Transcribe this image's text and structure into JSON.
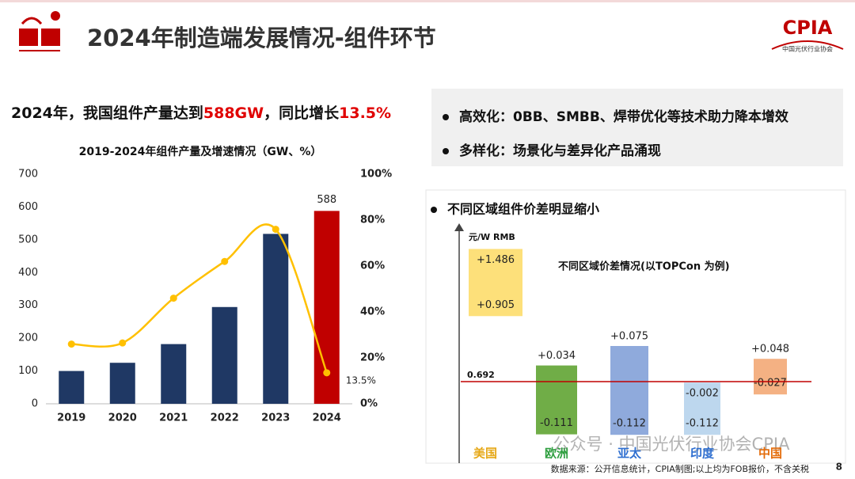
{
  "header": {
    "title": "2024年制造端发展情况-组件环节",
    "logo": "CPIA",
    "logo_subtitle": "中国光伏行业协会"
  },
  "headline": {
    "parts": [
      "2024年，我国组件产量达到",
      "588GW",
      "，同比增长",
      "13.5%"
    ]
  },
  "bullets": [
    "高效化：0BB、SMBB、焊带优化等技术助力降本增效",
    "多样化：场景化与差异化产品涌现"
  ],
  "section_bullet": "不同区域组件价差明显缩小",
  "chart_data": [
    {
      "type": "bar-line",
      "title": "2019-2024年组件产量及增速情况（GW、%）",
      "categories": [
        "2019",
        "2020",
        "2021",
        "2022",
        "2023",
        "2024"
      ],
      "series": [
        {
          "type": "bar",
          "colors": [
            "#1f3864",
            "#1f3864",
            "#1f3864",
            "#1f3864",
            "#1f3864",
            "#c00000"
          ],
          "values": [
            100,
            125,
            182,
            295,
            518,
            588
          ],
          "value_labels": [
            null,
            null,
            null,
            null,
            null,
            "588"
          ]
        },
        {
          "type": "line",
          "axis": "y2",
          "color": "#ffc000",
          "values": [
            26,
            26.5,
            46,
            62,
            76,
            13.5
          ],
          "value_labels": [
            null,
            null,
            null,
            null,
            null,
            "13.5%"
          ]
        }
      ],
      "ylim": [
        0,
        700
      ],
      "yticks": [
        0,
        100,
        200,
        300,
        400,
        500,
        600,
        700
      ],
      "y2lim": [
        0,
        100
      ],
      "y2ticks": [
        {
          "value": 0,
          "label": "0%"
        },
        {
          "value": 20,
          "label": "20%"
        },
        {
          "value": 40,
          "label": "40%"
        },
        {
          "value": 60,
          "label": "60%"
        },
        {
          "value": 80,
          "label": "80%"
        },
        {
          "value": 100,
          "label": "100%"
        }
      ]
    },
    {
      "type": "range-bar",
      "title": "不同区域价差情况(以TOPCon 为例)",
      "y_label": "元/W  RMB",
      "categories": [
        "美国",
        "欧洲",
        "亚太",
        "印度",
        "中国"
      ],
      "colors": [
        "#fde07a",
        "#70ad47",
        "#8faadc",
        "#bdd7ee",
        "#f4b183"
      ],
      "label_colors": [
        "#e6a817",
        "#2e9e3f",
        "#2f6fd0",
        "#2f6fd0",
        "#e46c0a"
      ],
      "series": [
        {
          "values": [
            1.486,
            0.034,
            0.075,
            -0.002,
            0.048
          ],
          "value_labels": [
            "+1.486",
            "+0.034",
            "+0.075",
            "-0.002",
            "+0.048"
          ]
        },
        {
          "values": [
            0.905,
            -0.111,
            -0.112,
            -0.112,
            -0.027
          ],
          "value_labels": [
            "+0.905",
            "-0.111",
            "-0.112",
            "-0.112",
            "-0.027"
          ]
        }
      ],
      "baseline": 0.692,
      "baseline_color": "#c00000"
    }
  ],
  "source": "数据来源：公开信息统计，CPIA制图;以上均为FOB报价，不含关税",
  "page_number": 8,
  "watermark": "公众号 · 中国光伏行业协会CPIA"
}
